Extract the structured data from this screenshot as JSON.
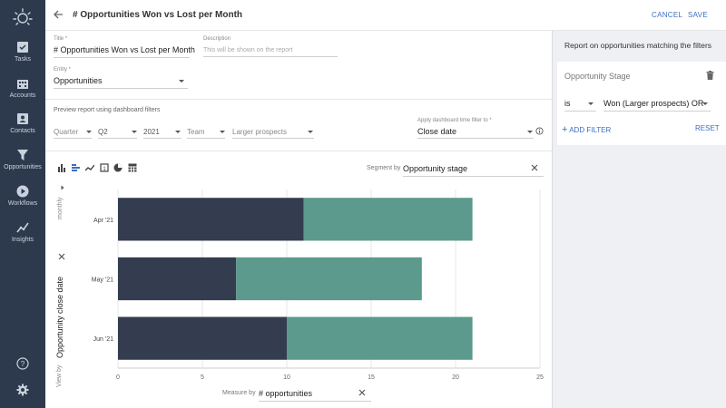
{
  "sidebar": {
    "items": [
      {
        "label": "Tasks",
        "icon": "tasks-icon"
      },
      {
        "label": "Accounts",
        "icon": "accounts-icon"
      },
      {
        "label": "Contacts",
        "icon": "contacts-icon"
      },
      {
        "label": "Opportunities",
        "icon": "opportunities-icon"
      },
      {
        "label": "Workflows",
        "icon": "workflows-icon"
      },
      {
        "label": "Insights",
        "icon": "insights-icon"
      }
    ]
  },
  "header": {
    "title": "# Opportunities Won vs Lost per Month",
    "cancel_label": "CANCEL",
    "save_label": "SAVE"
  },
  "form": {
    "title_label": "Title *",
    "title_value": "# Opportunities Won vs Lost per Month",
    "description_label": "Description",
    "description_placeholder": "This will be shown on the report",
    "entity_label": "Entity *",
    "entity_value": "Opportunities",
    "preview_text": "Preview report using dashboard filters",
    "filters": {
      "quarter": "Quarter",
      "q": "Q2",
      "year": "2021",
      "team": "Team",
      "segment": "Larger prospects"
    },
    "time_filter_label": "Apply dashboard time filter to *",
    "time_filter_value": "Close date"
  },
  "chart_controls": {
    "segment_label": "Segment by",
    "segment_value": "Opportunity stage",
    "measure_label": "Measure by",
    "measure_value": "# opportunities",
    "view_by_label": "View by",
    "view_by_value": "Opportunity close date",
    "granularity": "monthly"
  },
  "chart_data": {
    "type": "bar",
    "orientation": "horizontal",
    "stacked": true,
    "categories": [
      "Apr '21",
      "May '21",
      "Jun '21"
    ],
    "series": [
      {
        "values": [
          11,
          7,
          10
        ],
        "color": "#333d4f"
      },
      {
        "values": [
          10,
          11,
          11
        ],
        "color": "#5b9a8c"
      }
    ],
    "x_ticks": [
      "0",
      "5",
      "10",
      "15",
      "20",
      "25"
    ],
    "xlim": [
      0,
      25
    ],
    "grid": true
  },
  "right_panel": {
    "title": "Report on opportunities matching the filters",
    "card_title": "Opportunity Stage",
    "operator": "is",
    "value": "Won (Larger prospects)",
    "conjunction": "OR",
    "add_filter_label": "ADD FILTER",
    "reset_label": "RESET"
  },
  "colors": {
    "sidebar_bg": "#2d3a4e",
    "accent": "#3a6fc4",
    "series_dark": "#333d4f",
    "series_teal": "#5b9a8c"
  }
}
